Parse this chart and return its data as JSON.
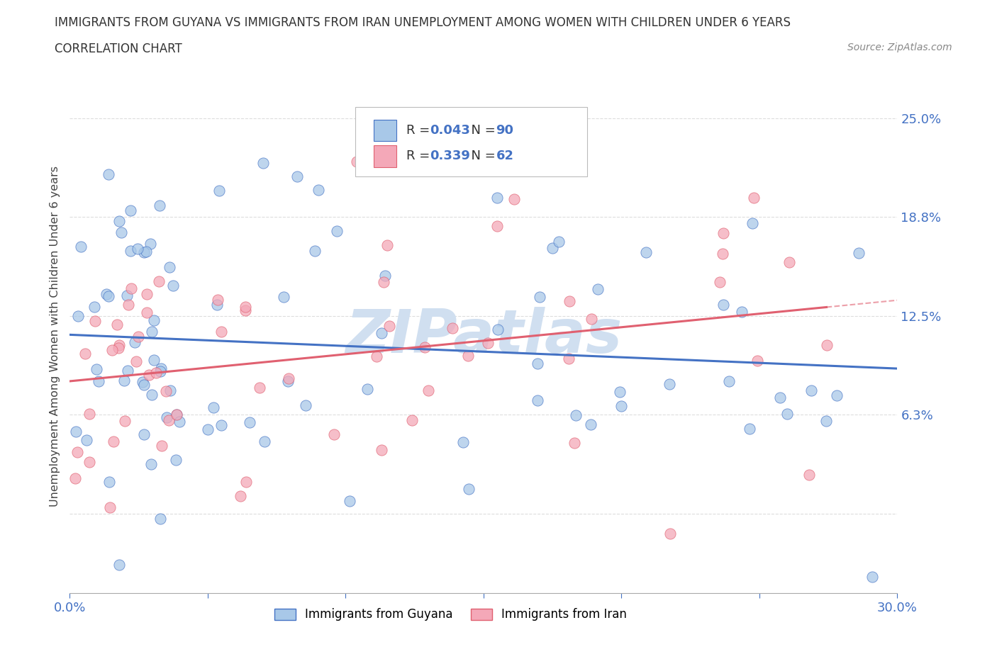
{
  "title_line1": "IMMIGRANTS FROM GUYANA VS IMMIGRANTS FROM IRAN UNEMPLOYMENT AMONG WOMEN WITH CHILDREN UNDER 6 YEARS",
  "title_line2": "CORRELATION CHART",
  "source": "Source: ZipAtlas.com",
  "ylabel": "Unemployment Among Women with Children Under 6 years",
  "xlim": [
    0.0,
    0.3
  ],
  "ylim": [
    -0.05,
    0.275
  ],
  "yticks": [
    0.0,
    0.063,
    0.125,
    0.188,
    0.25
  ],
  "ytick_labels": [
    "",
    "6.3%",
    "12.5%",
    "18.8%",
    "25.0%"
  ],
  "xticks": [
    0.0,
    0.05,
    0.1,
    0.15,
    0.2,
    0.25,
    0.3
  ],
  "xtick_labels": [
    "0.0%",
    "",
    "",
    "",
    "",
    "",
    "30.0%"
  ],
  "legend_guyana": "Immigrants from Guyana",
  "legend_iran": "Immigrants from Iran",
  "R_guyana": 0.043,
  "N_guyana": 90,
  "R_iran": 0.339,
  "N_iran": 62,
  "color_guyana": "#a8c8e8",
  "color_iran": "#f4a8b8",
  "trendline_guyana": "#4472c4",
  "trendline_iran": "#e06070",
  "text_color": "#4472c4",
  "watermark_color": "#d0dff0",
  "axis_color": "#aaaaaa",
  "grid_color": "#dddddd"
}
